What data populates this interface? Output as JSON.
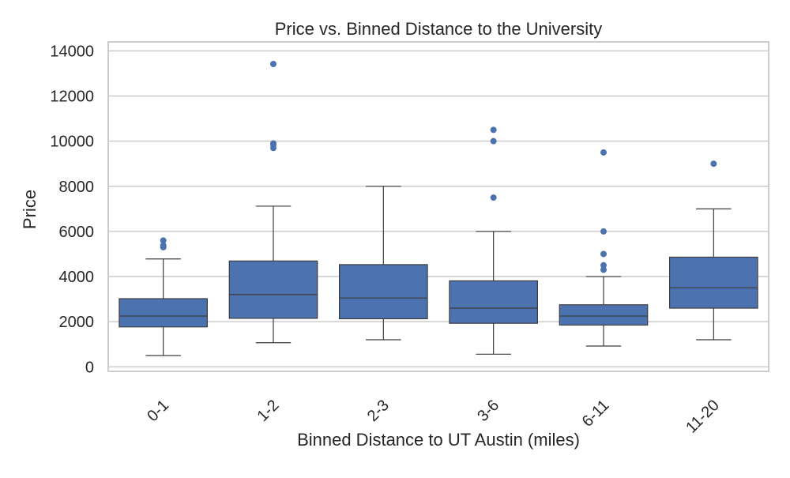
{
  "chart_data": {
    "type": "box",
    "title": "Price vs. Binned Distance to the University",
    "xlabel": "Binned Distance to UT Austin (miles)",
    "ylabel": "Price",
    "ylim": [
      -200,
      14400
    ],
    "yticks": [
      0,
      2000,
      4000,
      6000,
      8000,
      10000,
      12000,
      14000
    ],
    "grid": "horizontal",
    "box_color": "#4c72b0",
    "categories": [
      "0-1",
      "1-2",
      "2-3",
      "3-6",
      "6-11",
      "11-20"
    ],
    "boxes": [
      {
        "category": "0-1",
        "whisker_low": 500,
        "q1": 1770,
        "median": 2250,
        "q3": 3020,
        "whisker_high": 4780,
        "outliers": [
          5300,
          5380,
          5600
        ]
      },
      {
        "category": "1-2",
        "whisker_low": 1070,
        "q1": 2150,
        "median": 3200,
        "q3": 4690,
        "whisker_high": 7120,
        "outliers": [
          9700,
          9850,
          9900,
          13420
        ]
      },
      {
        "category": "2-3",
        "whisker_low": 1200,
        "q1": 2130,
        "median": 3050,
        "q3": 4530,
        "whisker_high": 8000,
        "outliers": []
      },
      {
        "category": "3-6",
        "whisker_low": 560,
        "q1": 1930,
        "median": 2600,
        "q3": 3810,
        "whisker_high": 6000,
        "outliers": [
          7500,
          10000,
          10500
        ]
      },
      {
        "category": "6-11",
        "whisker_low": 920,
        "q1": 1850,
        "median": 2250,
        "q3": 2750,
        "whisker_high": 4000,
        "outliers": [
          4300,
          4500,
          5000,
          6000,
          9500
        ]
      },
      {
        "category": "11-20",
        "whisker_low": 1200,
        "q1": 2600,
        "median": 3500,
        "q3": 4860,
        "whisker_high": 7000,
        "outliers": [
          9000
        ]
      }
    ]
  }
}
